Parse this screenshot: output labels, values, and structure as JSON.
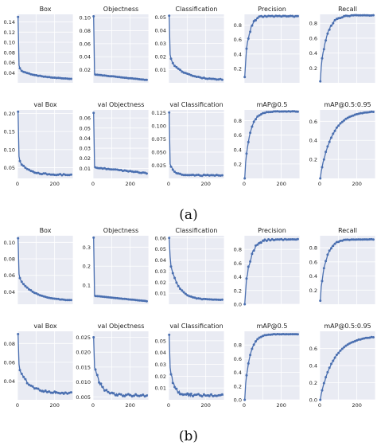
{
  "captions": {
    "a": "(a)",
    "b": "(b)"
  },
  "style": {
    "panel_bg": "#e9ebf3",
    "grid": "#ffffff",
    "line": "#4a6fb0",
    "text": "#222222"
  },
  "chart_data": [
    {
      "group": "a",
      "type": "line",
      "title": "Box",
      "xlim": [
        0,
        300
      ],
      "xticks": [],
      "ylim": [
        0.02,
        0.155
      ],
      "yticks": [
        0.04,
        0.06,
        0.08,
        0.1,
        0.12,
        0.14
      ],
      "yprec": 2,
      "shape": "loss",
      "params": {
        "y0": 0.15,
        "a": 0.032,
        "b": 0.02,
        "k1": 0.15,
        "k2": 0.008,
        "spike": null,
        "noise": 0.0008,
        "yend": 0.026
      }
    },
    {
      "group": "a",
      "type": "line",
      "title": "Objectness",
      "xlim": [
        0,
        300
      ],
      "xticks": [],
      "ylim": [
        0.0,
        0.105
      ],
      "yticks": [
        0.02,
        0.04,
        0.06,
        0.08,
        0.1
      ],
      "yprec": 2,
      "shape": "spike",
      "params": {
        "y0": 0.102,
        "yspike": 0.013,
        "yend": 0.004,
        "noise": 0.0004
      }
    },
    {
      "group": "a",
      "type": "line",
      "title": "Classification",
      "xlim": [
        0,
        300
      ],
      "xticks": [],
      "ylim": [
        0.0,
        0.052
      ],
      "yticks": [
        0.01,
        0.02,
        0.03,
        0.04,
        0.05
      ],
      "yprec": 2,
      "shape": "loss",
      "params": {
        "y0": 0.051,
        "a": 0.012,
        "b": 0.016,
        "k1": 0.12,
        "k2": 0.012,
        "spike": null,
        "noise": 0.0006,
        "yend": 0.002
      }
    },
    {
      "group": "a",
      "type": "line",
      "title": "Precision",
      "xlim": [
        0,
        300
      ],
      "xticks": [],
      "ylim": [
        0.0,
        0.95
      ],
      "yticks": [
        0.2,
        0.4,
        0.6,
        0.8
      ],
      "yprec": 1,
      "shape": "rise",
      "params": {
        "y0": 0.08,
        "ymax": 0.93,
        "k": 0.045,
        "noise": 0.09,
        "noiseDecay": 0.04
      }
    },
    {
      "group": "a",
      "type": "line",
      "title": "Recall",
      "xlim": [
        0,
        300
      ],
      "xticks": [],
      "ylim": [
        0.0,
        0.92
      ],
      "yticks": [
        0.2,
        0.4,
        0.6,
        0.8
      ],
      "yprec": 1,
      "shape": "rise",
      "params": {
        "y0": 0.02,
        "ymax": 0.91,
        "k": 0.03,
        "noise": 0.05,
        "noiseDecay": 0.03
      }
    },
    {
      "group": "a",
      "type": "line",
      "title": "val Box",
      "xlim": [
        0,
        300
      ],
      "xticks": [
        0,
        200
      ],
      "ylim": [
        0.02,
        0.21
      ],
      "yticks": [
        0.05,
        0.1,
        0.15,
        0.2
      ],
      "yprec": 2,
      "shape": "loss",
      "params": {
        "y0": 0.205,
        "a": 0.06,
        "b": 0.045,
        "k1": 0.2,
        "k2": 0.02,
        "spike": null,
        "noise": 0.003,
        "yend": 0.03
      }
    },
    {
      "group": "a",
      "type": "line",
      "title": "val Objectness",
      "xlim": [
        0,
        300
      ],
      "xticks": [
        0,
        200
      ],
      "ylim": [
        0.0,
        0.068
      ],
      "yticks": [
        0.01,
        0.02,
        0.03,
        0.04,
        0.05,
        0.06
      ],
      "yprec": 2,
      "shape": "spike",
      "params": {
        "y0": 0.065,
        "yspike": 0.011,
        "yend": 0.005,
        "noise": 0.0008
      }
    },
    {
      "group": "a",
      "type": "line",
      "title": "val Classification",
      "xlim": [
        0,
        300
      ],
      "xticks": [
        0,
        200
      ],
      "ylim": [
        0.0,
        0.13
      ],
      "yticks": [
        0.025,
        0.05,
        0.075,
        0.1,
        0.125
      ],
      "yprec": 3,
      "shape": "spike2",
      "params": {
        "y0": 0.125,
        "yspike": 0.04,
        "yend": 0.006,
        "k": 0.05,
        "noise": 0.002
      }
    },
    {
      "group": "a",
      "type": "line",
      "title": "mAP@0.5",
      "xlim": [
        0,
        300
      ],
      "xticks": [
        0,
        200
      ],
      "ylim": [
        0.0,
        0.95
      ],
      "yticks": [
        0.2,
        0.4,
        0.6,
        0.8
      ],
      "yprec": 1,
      "shape": "rise",
      "params": {
        "y0": 0.0,
        "ymax": 0.93,
        "k": 0.035,
        "noise": 0.02,
        "noiseDecay": 0.03
      }
    },
    {
      "group": "a",
      "type": "line",
      "title": "mAP@0.5:0.95",
      "xlim": [
        0,
        300
      ],
      "xticks": [
        0,
        200
      ],
      "ylim": [
        0.0,
        0.72
      ],
      "yticks": [
        0.2,
        0.4,
        0.6
      ],
      "yprec": 1,
      "shape": "rise",
      "params": {
        "y0": 0.0,
        "ymax": 0.71,
        "k": 0.015,
        "noise": 0.015,
        "noiseDecay": 0.02
      }
    },
    {
      "group": "b",
      "type": "line",
      "title": "Box",
      "xlim": [
        0,
        300
      ],
      "xticks": [],
      "ylim": [
        0.025,
        0.108
      ],
      "yticks": [
        0.04,
        0.06,
        0.08,
        0.1
      ],
      "yprec": 2,
      "shape": "loss",
      "params": {
        "y0": 0.105,
        "a": 0.025,
        "b": 0.03,
        "k1": 0.2,
        "k2": 0.012,
        "spike": null,
        "noise": 0.0005,
        "yend": 0.029
      }
    },
    {
      "group": "b",
      "type": "line",
      "title": "Objectness",
      "xlim": [
        0,
        300
      ],
      "xticks": [],
      "ylim": [
        0.0,
        0.36
      ],
      "yticks": [
        0.1,
        0.2,
        0.3
      ],
      "yprec": 1,
      "shape": "spike",
      "params": {
        "y0": 0.35,
        "yspike": 0.045,
        "yend": 0.015,
        "noise": 0.001
      }
    },
    {
      "group": "b",
      "type": "line",
      "title": "Classification",
      "xlim": [
        0,
        300
      ],
      "xticks": [],
      "ylim": [
        0.0,
        0.062
      ],
      "yticks": [
        0.01,
        0.02,
        0.03,
        0.04,
        0.05,
        0.06
      ],
      "yprec": 2,
      "shape": "loss",
      "params": {
        "y0": 0.06,
        "a": 0.0,
        "b": 0.04,
        "k1": 0.2,
        "k2": 0.022,
        "spike": 0.043,
        "noise": 0.0005,
        "yend": 0.004
      }
    },
    {
      "group": "b",
      "type": "line",
      "title": "Precision",
      "xlim": [
        0,
        300
      ],
      "xticks": [],
      "ylim": [
        0.0,
        1.0
      ],
      "yticks": [
        0.0,
        0.2,
        0.4,
        0.6,
        0.8
      ],
      "yprec": 1,
      "shape": "rise",
      "params": {
        "y0": 0.0,
        "ymax": 0.95,
        "k": 0.035,
        "noise": 0.08,
        "noiseDecay": 0.03
      }
    },
    {
      "group": "b",
      "type": "line",
      "title": "Recall",
      "xlim": [
        0,
        300
      ],
      "xticks": [],
      "ylim": [
        0.0,
        0.97
      ],
      "yticks": [
        0.2,
        0.4,
        0.6,
        0.8
      ],
      "yprec": 1,
      "shape": "rise",
      "params": {
        "y0": 0.05,
        "ymax": 0.92,
        "k": 0.032,
        "noise": 0.04,
        "noiseDecay": 0.03
      }
    },
    {
      "group": "b",
      "type": "line",
      "title": "val Box",
      "xlim": [
        0,
        300
      ],
      "xticks": [
        0,
        200
      ],
      "ylim": [
        0.02,
        0.093
      ],
      "yticks": [
        0.04,
        0.06,
        0.08
      ],
      "yprec": 2,
      "shape": "loss",
      "params": {
        "y0": 0.09,
        "a": 0.02,
        "b": 0.03,
        "k1": 0.2,
        "k2": 0.018,
        "spike": null,
        "noise": 0.002,
        "yend": 0.027
      }
    },
    {
      "group": "b",
      "type": "line",
      "title": "val Objectness",
      "xlim": [
        0,
        300
      ],
      "xticks": [
        0,
        200
      ],
      "ylim": [
        0.004,
        0.027
      ],
      "yticks": [
        0.005,
        0.01,
        0.015,
        0.02,
        0.025
      ],
      "yprec": 3,
      "shape": "spike2",
      "params": {
        "y0": 0.025,
        "yspike": 0.018,
        "yend": 0.0055,
        "k": 0.03,
        "noise": 0.0007
      }
    },
    {
      "group": "b",
      "type": "line",
      "title": "val Classification",
      "xlim": [
        0,
        300
      ],
      "xticks": [
        0,
        200
      ],
      "ylim": [
        0.0,
        0.058
      ],
      "yticks": [
        0.01,
        0.02,
        0.03,
        0.04,
        0.05
      ],
      "yprec": 2,
      "shape": "spike2",
      "params": {
        "y0": 0.055,
        "yspike": 0.04,
        "yend": 0.004,
        "k": 0.05,
        "noise": 0.002
      }
    },
    {
      "group": "b",
      "type": "line",
      "title": "mAP@0.5",
      "xlim": [
        0,
        300
      ],
      "xticks": [
        0,
        200
      ],
      "ylim": [
        0.0,
        1.0
      ],
      "yticks": [
        0.0,
        0.2,
        0.4,
        0.6,
        0.8
      ],
      "yprec": 1,
      "shape": "rise",
      "params": {
        "y0": 0.0,
        "ymax": 0.96,
        "k": 0.035,
        "noise": 0.02,
        "noiseDecay": 0.03
      }
    },
    {
      "group": "b",
      "type": "line",
      "title": "mAP@0.5:0.95",
      "xlim": [
        0,
        300
      ],
      "xticks": [
        0,
        200
      ],
      "ylim": [
        0.0,
        0.8
      ],
      "yticks": [
        0.0,
        0.2,
        0.4,
        0.6
      ],
      "yprec": 1,
      "shape": "rise",
      "params": {
        "y0": 0.0,
        "ymax": 0.75,
        "k": 0.013,
        "noise": 0.015,
        "noiseDecay": 0.02
      }
    }
  ]
}
